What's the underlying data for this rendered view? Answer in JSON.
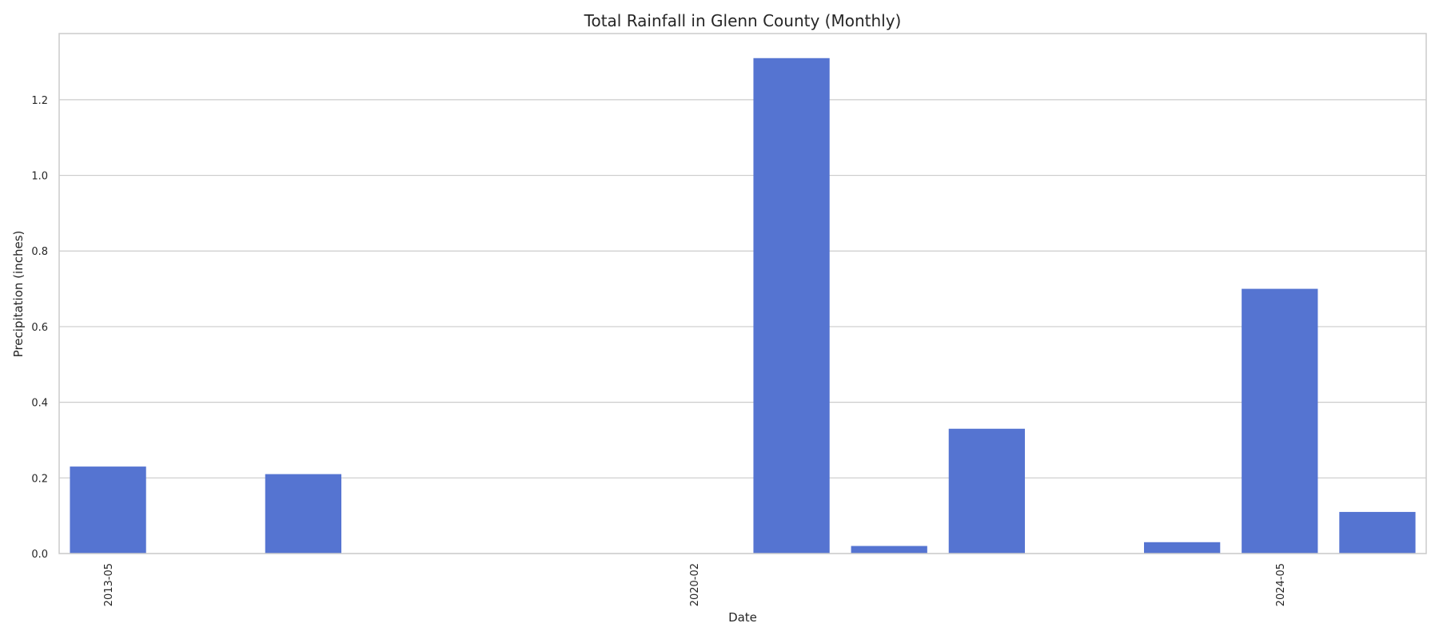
{
  "chart_data": {
    "type": "bar",
    "title": "Total Rainfall in Glenn County (Monthly)",
    "xlabel": "Date",
    "ylabel": "Precipitation (inches)",
    "ylim": [
      0,
      1.375
    ],
    "yticks": [
      "0.0",
      "0.2",
      "0.4",
      "0.6",
      "0.8",
      "1.0",
      "1.2"
    ],
    "grid": true,
    "bar_color": "#5574d1",
    "categories": [
      "2013-05",
      "",
      "",
      "",
      "",
      "",
      "2020-02",
      "",
      "",
      "",
      "",
      "",
      "2024-05",
      ""
    ],
    "values": [
      0.23,
      0,
      0.21,
      0,
      0,
      0,
      0,
      1.31,
      0.02,
      0.33,
      0,
      0.03,
      0.7,
      0.11
    ]
  }
}
